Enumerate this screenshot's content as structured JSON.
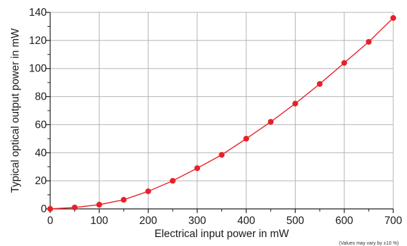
{
  "chart_data": {
    "type": "line",
    "title": "",
    "xlabel": "Electrical input power in mW",
    "ylabel": "Typical optical output power in mW",
    "xlim": [
      0,
      700
    ],
    "ylim": [
      0,
      140
    ],
    "x_ticks": [
      0,
      100,
      200,
      300,
      400,
      500,
      600,
      700
    ],
    "y_ticks": [
      0,
      20,
      40,
      60,
      80,
      100,
      120,
      140
    ],
    "grid": true,
    "legend": "none",
    "series": [
      {
        "color": "#e8202a",
        "x": [
          0,
          50,
          100,
          150,
          200,
          250,
          300,
          350,
          400,
          450,
          500,
          550,
          600,
          650,
          700
        ],
        "y": [
          0,
          1,
          3,
          6.5,
          12.5,
          20,
          29,
          38.5,
          50,
          62,
          75,
          89,
          104,
          119,
          136
        ]
      }
    ],
    "note": "(Values may vary by ±10 %)"
  },
  "colors": {
    "grid": "#b3b3b3",
    "axis": "#1a1a1a",
    "series": "#e8202a"
  }
}
